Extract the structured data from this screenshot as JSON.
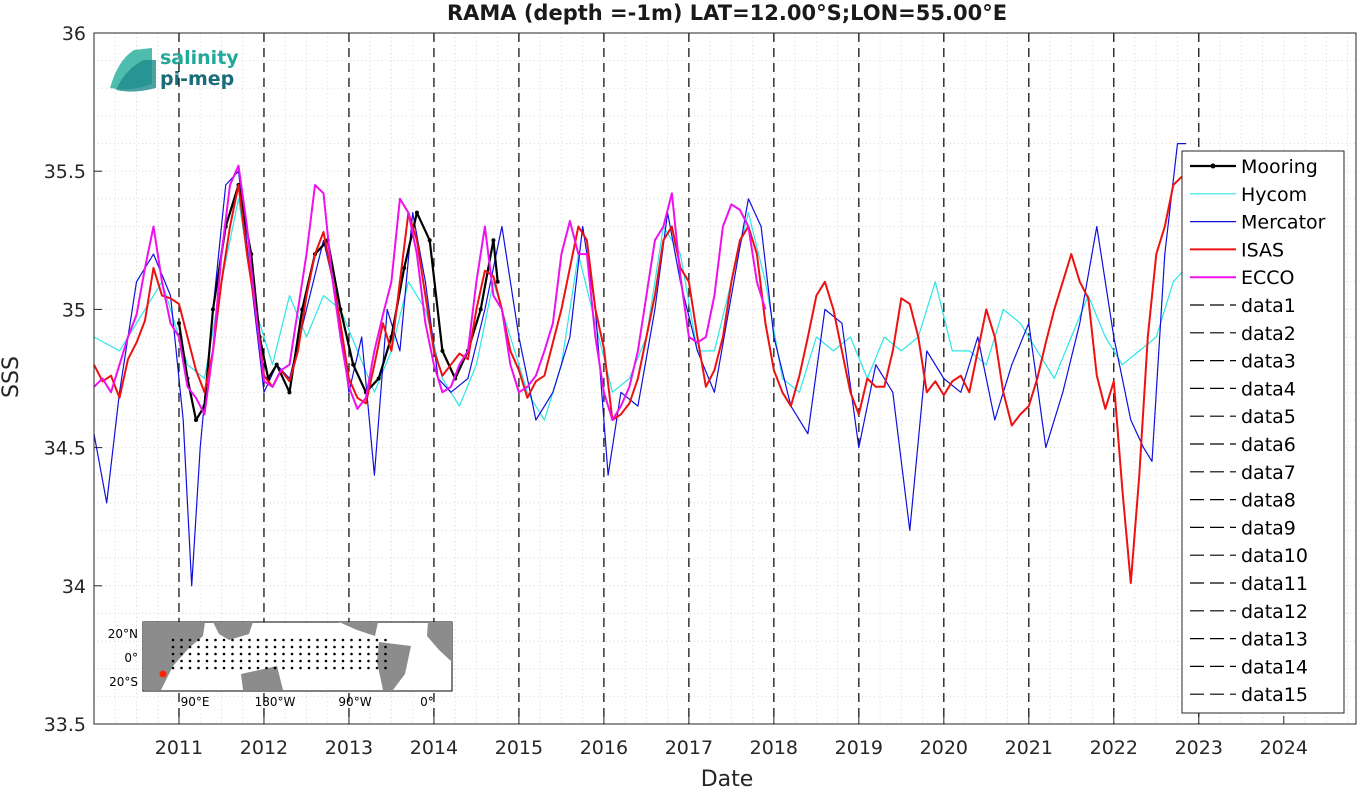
{
  "chart_data": {
    "type": "line",
    "title": "RAMA (depth =-1m) LAT=12.00°S;LON=55.00°E",
    "xlabel": "Date",
    "ylabel": "SSS",
    "xlim": [
      2010.0,
      2024.85
    ],
    "ylim": [
      33.5,
      36.0
    ],
    "xticks": [
      2011,
      2012,
      2013,
      2014,
      2015,
      2016,
      2017,
      2018,
      2019,
      2020,
      2021,
      2022,
      2023,
      2024
    ],
    "xtick_labels": [
      "2011",
      "2012",
      "2013",
      "2014",
      "2015",
      "2016",
      "2017",
      "2018",
      "2019",
      "2020",
      "2021",
      "2022",
      "2023",
      "2024"
    ],
    "yticks": [
      33.5,
      34,
      34.5,
      35,
      35.5,
      36
    ],
    "ytick_labels": [
      "33.5",
      "34",
      "34.5",
      "35",
      "35.5",
      "36"
    ],
    "grid": true,
    "legend_position": "right",
    "vertical_dashed_lines": [
      2011.0,
      2012.0,
      2013.0,
      2014.0,
      2015.0,
      2016.0,
      2017.0,
      2018.0,
      2019.0,
      2020.0,
      2021.0,
      2022.0,
      2023.0
    ],
    "series": [
      {
        "name": "Mooring",
        "color": "#000000",
        "style": "solid-dots",
        "x": [
          2011.0,
          2011.1,
          2011.2,
          2011.3,
          2011.4,
          2011.55,
          2011.7,
          2011.85,
          2011.95,
          2012.05,
          2012.15,
          2012.3,
          2012.45,
          2012.6,
          2012.75,
          2012.9,
          2013.05,
          2013.2,
          2013.35,
          2013.5,
          2013.65,
          2013.8,
          2013.95,
          2014.1,
          2014.25,
          2014.4,
          2014.55,
          2014.7,
          2014.75
        ],
        "values": [
          34.95,
          34.75,
          34.6,
          34.65,
          35.0,
          35.3,
          35.45,
          35.2,
          34.9,
          34.75,
          34.8,
          34.7,
          35.0,
          35.2,
          35.25,
          35.0,
          34.8,
          34.7,
          34.75,
          34.9,
          35.15,
          35.35,
          35.25,
          34.85,
          34.75,
          34.85,
          35.0,
          35.25,
          35.1
        ]
      },
      {
        "name": "Hycom",
        "color": "#2ee6e6",
        "style": "solid",
        "x": [
          2010.0,
          2010.3,
          2010.6,
          2010.8,
          2011.1,
          2011.3,
          2011.5,
          2011.7,
          2011.9,
          2012.1,
          2012.3,
          2012.5,
          2012.7,
          2012.9,
          2013.1,
          2013.3,
          2013.5,
          2013.7,
          2013.9,
          2014.1,
          2014.3,
          2014.5,
          2014.7,
          2014.9,
          2015.1,
          2015.3,
          2015.5,
          2015.7,
          2015.9,
          2016.1,
          2016.3,
          2016.5,
          2016.7,
          2016.9,
          2017.1,
          2017.3,
          2017.5,
          2017.7,
          2017.9,
          2018.1,
          2018.3,
          2018.5,
          2018.7,
          2018.9,
          2019.1,
          2019.3,
          2019.5,
          2019.7,
          2019.9,
          2020.1,
          2020.3,
          2020.5,
          2020.7,
          2020.9,
          2021.1,
          2021.3,
          2021.5,
          2021.7,
          2021.9,
          2022.1,
          2022.3,
          2022.5,
          2022.7,
          2022.85
        ],
        "values": [
          34.9,
          34.85,
          35.0,
          35.1,
          34.8,
          34.75,
          35.1,
          35.4,
          35.0,
          34.8,
          35.05,
          34.9,
          35.05,
          35.0,
          34.85,
          34.7,
          34.85,
          35.1,
          35.0,
          34.75,
          34.65,
          34.8,
          35.1,
          34.9,
          34.7,
          34.6,
          34.8,
          35.2,
          34.95,
          34.7,
          34.75,
          34.9,
          35.3,
          35.2,
          34.85,
          34.85,
          35.1,
          35.35,
          35.1,
          34.75,
          34.7,
          34.9,
          34.85,
          34.9,
          34.75,
          34.9,
          34.85,
          34.9,
          35.1,
          34.85,
          34.85,
          34.8,
          35.0,
          34.95,
          34.85,
          34.75,
          34.9,
          35.05,
          34.9,
          34.8,
          34.85,
          34.9,
          35.1,
          35.15
        ]
      },
      {
        "name": "Mercator",
        "color": "#1010dd",
        "style": "solid",
        "x": [
          2010.0,
          2010.15,
          2010.3,
          2010.5,
          2010.7,
          2010.9,
          2011.05,
          2011.15,
          2011.25,
          2011.4,
          2011.55,
          2011.7,
          2011.85,
          2012.0,
          2012.15,
          2012.3,
          2012.5,
          2012.7,
          2012.85,
          2013.0,
          2013.15,
          2013.3,
          2013.45,
          2013.6,
          2013.75,
          2013.9,
          2014.05,
          2014.2,
          2014.4,
          2014.6,
          2014.8,
          2015.0,
          2015.2,
          2015.4,
          2015.6,
          2015.75,
          2015.9,
          2016.05,
          2016.2,
          2016.4,
          2016.6,
          2016.75,
          2016.9,
          2017.1,
          2017.3,
          2017.5,
          2017.7,
          2017.85,
          2018.0,
          2018.2,
          2018.4,
          2018.6,
          2018.8,
          2019.0,
          2019.2,
          2019.4,
          2019.6,
          2019.8,
          2020.0,
          2020.2,
          2020.4,
          2020.6,
          2020.8,
          2021.0,
          2021.2,
          2021.4,
          2021.6,
          2021.8,
          2022.0,
          2022.2,
          2022.35,
          2022.45,
          2022.6,
          2022.75,
          2022.85
        ],
        "values": [
          34.55,
          34.3,
          34.7,
          35.1,
          35.2,
          35.05,
          34.6,
          34.0,
          34.5,
          35.0,
          35.45,
          35.5,
          35.1,
          34.7,
          34.8,
          34.75,
          35.0,
          35.25,
          35.05,
          34.7,
          34.9,
          34.4,
          35.0,
          34.85,
          35.35,
          35.1,
          34.75,
          34.7,
          34.75,
          35.0,
          35.3,
          34.9,
          34.6,
          34.7,
          34.9,
          35.3,
          35.0,
          34.4,
          34.7,
          34.65,
          35.0,
          35.35,
          35.1,
          34.85,
          34.7,
          35.05,
          35.4,
          35.3,
          34.9,
          34.65,
          34.55,
          35.0,
          34.95,
          34.5,
          34.8,
          34.7,
          34.2,
          34.85,
          34.75,
          34.7,
          34.9,
          34.6,
          34.8,
          34.95,
          34.5,
          34.7,
          34.95,
          35.3,
          34.9,
          34.6,
          34.5,
          34.45,
          35.2,
          35.6,
          35.6
        ]
      },
      {
        "name": "ISAS",
        "color": "#ee1111",
        "style": "solid",
        "x": [
          2010.0,
          2010.1,
          2010.2,
          2010.3,
          2010.4,
          2010.5,
          2010.6,
          2010.7,
          2010.8,
          2010.9,
          2011.0,
          2011.1,
          2011.2,
          2011.3,
          2011.4,
          2011.5,
          2011.6,
          2011.7,
          2011.8,
          2011.9,
          2012.0,
          2012.1,
          2012.2,
          2012.3,
          2012.4,
          2012.5,
          2012.6,
          2012.7,
          2012.8,
          2012.9,
          2013.0,
          2013.1,
          2013.2,
          2013.3,
          2013.4,
          2013.5,
          2013.6,
          2013.7,
          2013.8,
          2013.9,
          2014.0,
          2014.1,
          2014.2,
          2014.3,
          2014.4,
          2014.5,
          2014.6,
          2014.7,
          2014.8,
          2014.9,
          2015.0,
          2015.1,
          2015.2,
          2015.3,
          2015.4,
          2015.5,
          2015.6,
          2015.7,
          2015.8,
          2015.9,
          2016.0,
          2016.1,
          2016.2,
          2016.3,
          2016.4,
          2016.5,
          2016.6,
          2016.7,
          2016.8,
          2016.9,
          2017.0,
          2017.1,
          2017.2,
          2017.3,
          2017.4,
          2017.5,
          2017.6,
          2017.7,
          2017.8,
          2017.9,
          2018.0,
          2018.1,
          2018.2,
          2018.3,
          2018.4,
          2018.5,
          2018.6,
          2018.7,
          2018.8,
          2018.9,
          2019.0,
          2019.1,
          2019.2,
          2019.3,
          2019.4,
          2019.5,
          2019.6,
          2019.7,
          2019.8,
          2019.9,
          2020.0,
          2020.1,
          2020.2,
          2020.3,
          2020.4,
          2020.5,
          2020.6,
          2020.7,
          2020.8,
          2020.9,
          2021.0,
          2021.1,
          2021.2,
          2021.3,
          2021.4,
          2021.5,
          2021.6,
          2021.7,
          2021.8,
          2021.9,
          2022.0,
          2022.1,
          2022.2,
          2022.3,
          2022.4,
          2022.5,
          2022.6,
          2022.7,
          2022.8
        ],
        "values": [
          34.8,
          34.74,
          34.76,
          34.68,
          34.82,
          34.88,
          34.96,
          35.15,
          35.05,
          35.04,
          35.02,
          34.9,
          34.78,
          34.7,
          34.85,
          35.1,
          35.3,
          35.45,
          35.2,
          35.0,
          34.76,
          34.72,
          34.78,
          34.74,
          34.85,
          35.05,
          35.2,
          35.28,
          35.12,
          34.95,
          34.75,
          34.68,
          34.66,
          34.8,
          34.95,
          34.85,
          35.1,
          35.35,
          35.25,
          35.05,
          34.85,
          34.76,
          34.8,
          34.84,
          34.82,
          35.0,
          35.14,
          35.12,
          35.0,
          34.85,
          34.78,
          34.68,
          34.74,
          34.76,
          34.88,
          35.0,
          35.15,
          35.3,
          35.25,
          35.0,
          34.86,
          34.6,
          34.62,
          34.66,
          34.75,
          34.9,
          35.05,
          35.25,
          35.3,
          35.15,
          35.1,
          34.9,
          34.72,
          34.78,
          34.9,
          35.1,
          35.25,
          35.3,
          35.2,
          34.95,
          34.78,
          34.7,
          34.65,
          34.76,
          34.9,
          35.05,
          35.1,
          35.0,
          34.85,
          34.7,
          34.62,
          34.75,
          34.72,
          34.72,
          34.85,
          35.04,
          35.02,
          34.9,
          34.7,
          34.74,
          34.69,
          34.74,
          34.76,
          34.7,
          34.85,
          35.0,
          34.9,
          34.7,
          34.58,
          34.62,
          34.65,
          34.75,
          34.88,
          35.0,
          35.1,
          35.2,
          35.1,
          35.04,
          34.76,
          34.64,
          34.74,
          34.35,
          34.01,
          34.4,
          34.9,
          35.2,
          35.3,
          35.45,
          35.48
        ]
      },
      {
        "name": "ECCO",
        "color": "#ee11ee",
        "style": "solid",
        "x": [
          2010.0,
          2010.1,
          2010.2,
          2010.3,
          2010.4,
          2010.5,
          2010.6,
          2010.7,
          2010.8,
          2010.9,
          2011.0,
          2011.1,
          2011.2,
          2011.3,
          2011.4,
          2011.5,
          2011.6,
          2011.7,
          2011.8,
          2011.9,
          2012.0,
          2012.1,
          2012.2,
          2012.3,
          2012.4,
          2012.5,
          2012.6,
          2012.7,
          2012.8,
          2012.9,
          2013.0,
          2013.1,
          2013.2,
          2013.3,
          2013.4,
          2013.5,
          2013.6,
          2013.7,
          2013.8,
          2013.9,
          2014.0,
          2014.1,
          2014.2,
          2014.3,
          2014.4,
          2014.5,
          2014.6,
          2014.7,
          2014.8,
          2014.9,
          2015.0,
          2015.1,
          2015.2,
          2015.3,
          2015.4,
          2015.5,
          2015.6,
          2015.7,
          2015.8,
          2015.9,
          2016.0,
          2016.1,
          2016.2,
          2016.3,
          2016.4,
          2016.5,
          2016.6,
          2016.7,
          2016.8,
          2016.9,
          2017.0,
          2017.1,
          2017.2,
          2017.3,
          2017.4,
          2017.5,
          2017.6,
          2017.7,
          2017.8,
          2017.9
        ],
        "values": [
          34.72,
          34.75,
          34.7,
          34.8,
          34.9,
          34.98,
          35.15,
          35.3,
          35.1,
          34.95,
          34.9,
          34.72,
          34.68,
          34.62,
          34.85,
          35.2,
          35.45,
          35.52,
          35.3,
          35.0,
          34.74,
          34.72,
          34.78,
          34.8,
          35.0,
          35.2,
          35.45,
          35.42,
          35.12,
          34.9,
          34.72,
          34.64,
          34.68,
          34.85,
          34.98,
          35.1,
          35.4,
          35.35,
          35.2,
          34.95,
          34.8,
          34.7,
          34.72,
          34.8,
          34.85,
          35.1,
          35.3,
          35.05,
          35.0,
          34.8,
          34.7,
          34.72,
          34.76,
          34.85,
          34.95,
          35.2,
          35.32,
          35.2,
          35.2,
          34.9,
          34.7,
          34.6,
          34.65,
          34.72,
          34.85,
          35.05,
          35.25,
          35.3,
          35.42,
          35.12,
          34.9,
          34.88,
          34.9,
          35.05,
          35.3,
          35.38,
          35.36,
          35.3,
          35.1,
          35.0
        ]
      }
    ],
    "legend": [
      "Mooring",
      "Hycom",
      "Mercator",
      "ISAS",
      "ECCO",
      "data1",
      "data2",
      "data3",
      "data4",
      "data5",
      "data6",
      "data7",
      "data8",
      "data9",
      "data10",
      "data11",
      "data12",
      "data13",
      "data14",
      "data15"
    ],
    "logo": {
      "line1": "salinity",
      "line2": "pi-mep"
    },
    "inset_map": {
      "yticks": [
        "20°N",
        "0°",
        "20°S"
      ],
      "xticks": [
        "90°E",
        "180°W",
        "90°W",
        "0°"
      ],
      "land_color": "#8c8c8c",
      "marker_color": "#ff2200"
    }
  }
}
